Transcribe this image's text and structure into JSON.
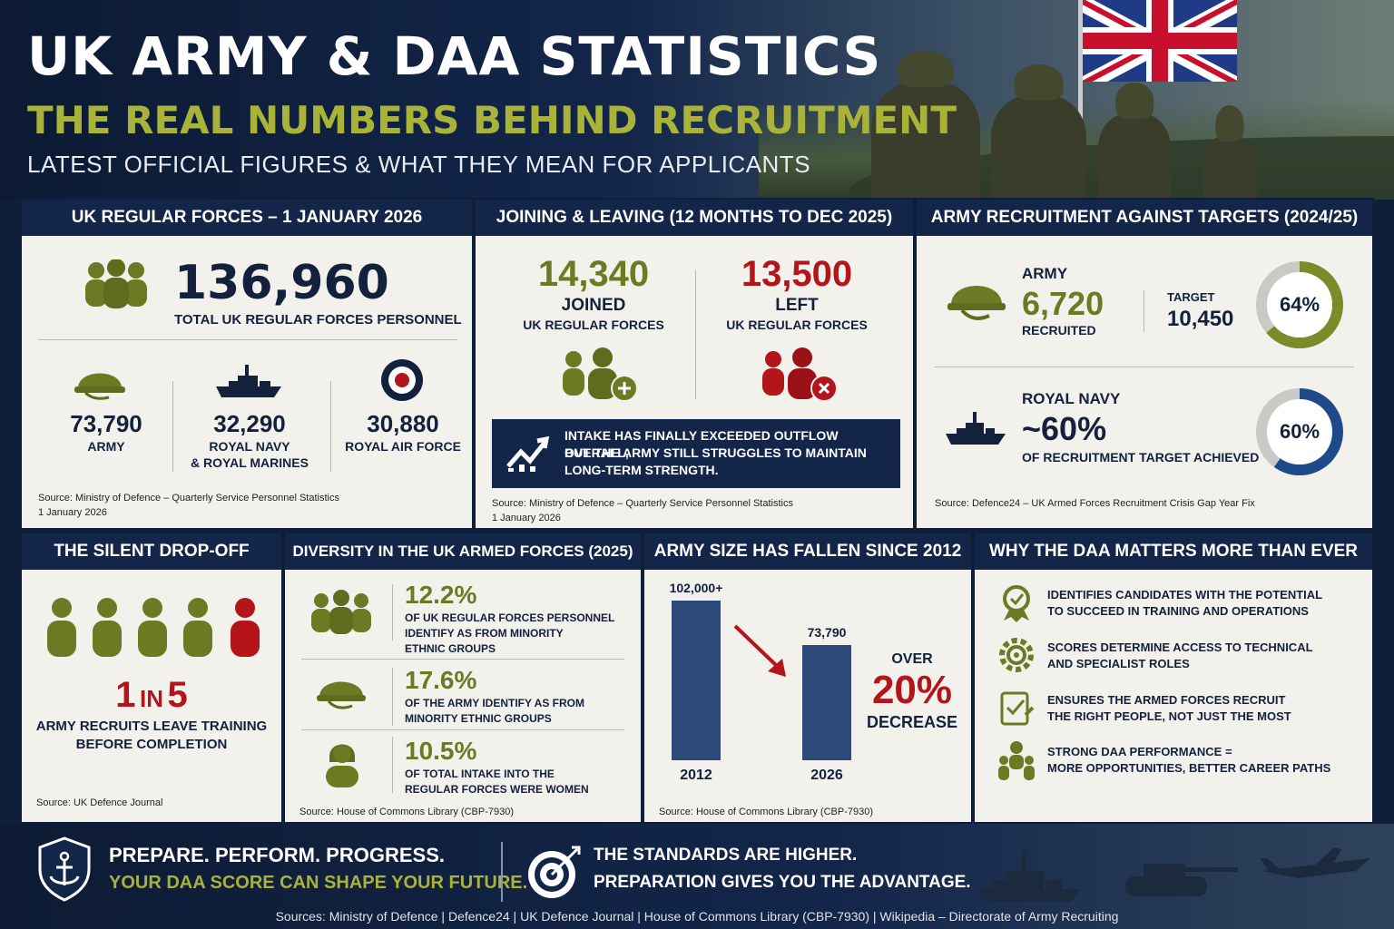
{
  "header": {
    "title": "UK ARMY & DAA STATISTICS",
    "subtitle": "THE REAL NUMBERS BEHIND RECRUITMENT",
    "tagline": "LATEST OFFICIAL FIGURES & WHAT THEY MEAN FOR APPLICANTS"
  },
  "regular_forces": {
    "heading": "UK REGULAR FORCES – 1 JANUARY 2026",
    "total_value": "136,960",
    "total_label": "TOTAL UK REGULAR FORCES PERSONNEL",
    "army_value": "73,790",
    "army_label": "ARMY",
    "navy_value": "32,290",
    "navy_label_1": "ROYAL NAVY",
    "navy_label_2": "& ROYAL MARINES",
    "raf_value": "30,880",
    "raf_label": "ROYAL AIR FORCE",
    "source_1": "Source: Ministry of Defence – Quarterly Service Personnel Statistics",
    "source_2": "1 January 2026"
  },
  "joining_leaving": {
    "heading": "JOINING & LEAVING (12 MONTHS TO DEC 2025)",
    "joined_value": "14,340",
    "joined_label": "JOINED",
    "joined_sub": "UK REGULAR FORCES",
    "left_value": "13,500",
    "left_label": "LEFT",
    "left_sub": "UK REGULAR FORCES",
    "note_1": "INTAKE HAS FINALLY EXCEEDED OUTFLOW OVERALL,",
    "note_2": "BUT THE ARMY STILL STRUGGLES TO MAINTAIN",
    "note_3": "LONG-TERM STRENGTH.",
    "source_1": "Source: Ministry of Defence – Quarterly Service Personnel Statistics",
    "source_2": "1 January 2026"
  },
  "targets": {
    "heading": "ARMY RECRUITMENT AGAINST TARGETS (2024/25)",
    "army_label": "ARMY",
    "army_value": "6,720",
    "army_sub": "RECRUITED",
    "target_label": "TARGET",
    "target_value": "10,450",
    "army_pct": "64%",
    "army_fraction": 0.64,
    "navy_label": "ROYAL NAVY",
    "navy_value": "~60%",
    "navy_sub": "OF RECRUITMENT TARGET ACHIEVED",
    "navy_pct": "60%",
    "navy_fraction": 0.6,
    "source": "Source: Defence24 – UK Armed Forces Recruitment Crisis Gap Year Fix"
  },
  "dropoff": {
    "heading": "THE SILENT DROP-OFF",
    "ratio_a": "1",
    "ratio_in": "IN",
    "ratio_b": "5",
    "text_1": "ARMY RECRUITS LEAVE TRAINING",
    "text_2": "BEFORE COMPLETION",
    "source": "Source: UK Defence Journal"
  },
  "diversity": {
    "heading": "DIVERSITY IN THE UK ARMED FORCES (2025)",
    "items": [
      {
        "value": "12.2%",
        "line1": "OF UK REGULAR FORCES PERSONNEL",
        "line2": "IDENTIFY AS FROM MINORITY",
        "line3": "ETHNIC GROUPS"
      },
      {
        "value": "17.6%",
        "line1": "OF THE ARMY IDENTIFY AS FROM",
        "line2": "MINORITY ETHNIC GROUPS",
        "line3": ""
      },
      {
        "value": "10.5%",
        "line1": "OF TOTAL INTAKE INTO THE",
        "line2": "REGULAR FORCES WERE WOMEN",
        "line3": ""
      }
    ],
    "source": "Source: House of Commons Library (CBP-7930)"
  },
  "army_size": {
    "heading": "ARMY SIZE HAS FALLEN SINCE 2012",
    "over": "OVER",
    "pct": "20%",
    "decrease": "DECREASE",
    "source": "Source: House of Commons Library (CBP-7930)"
  },
  "chart_data": {
    "type": "bar",
    "categories": [
      "2012",
      "2026"
    ],
    "values": [
      102000,
      73790
    ],
    "value_labels": [
      "102,000+",
      "73,790"
    ],
    "ylim": [
      0,
      110000
    ]
  },
  "daa": {
    "heading": "WHY THE DAA MATTERS MORE THAN EVER",
    "items": [
      {
        "icon": "medal-icon",
        "line1": "IDENTIFIES CANDIDATES WITH THE POTENTIAL",
        "line2": "TO SUCCEED IN TRAINING AND OPERATIONS"
      },
      {
        "icon": "gear-icon",
        "line1": "SCORES DETERMINE ACCESS TO TECHNICAL",
        "line2": "AND SPECIALIST ROLES"
      },
      {
        "icon": "checklist-icon",
        "line1": "ENSURES THE ARMED FORCES RECRUIT",
        "line2": "THE RIGHT PEOPLE, NOT JUST THE MOST"
      },
      {
        "icon": "team-icon",
        "line1": "STRONG DAA PERFORMANCE =",
        "line2": "MORE OPPORTUNITIES, BETTER CAREER PATHS"
      }
    ]
  },
  "footer": {
    "line1": "PREPARE. PERFORM. PROGRESS.",
    "line2": "YOUR DAA SCORE CAN SHAPE YOUR FUTURE.",
    "line3": "THE STANDARDS ARE HIGHER.",
    "line4": "PREPARATION GIVES YOU THE ADVANTAGE.",
    "sources": "Sources: Ministry of Defence | Defence24 | UK Defence Journal | House of Commons Library (CBP-7930) | Wikipedia – Directorate of Army Recruiting"
  },
  "colors": {
    "navy": "#13264a",
    "olive": "#6b7a23",
    "red": "#b3151b",
    "ring_grey": "#c9c9c5",
    "ring_olive": "#7d8a2a",
    "ring_blue": "#1f4a8a"
  }
}
